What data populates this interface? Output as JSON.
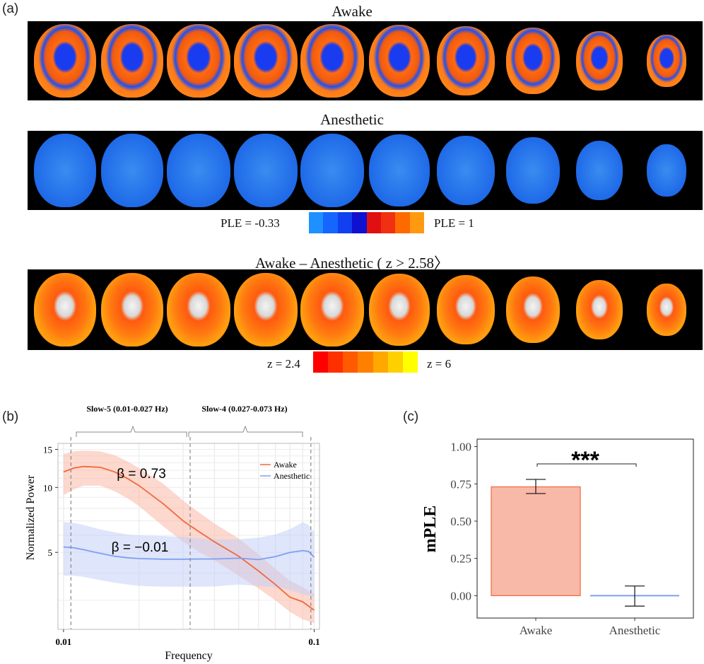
{
  "panel_a": {
    "label": "(a)",
    "rows": [
      {
        "title": "Awake",
        "scheme": "awake"
      },
      {
        "title": "Anesthetic",
        "scheme": "anesthetic"
      },
      {
        "title": "Awake – Anesthetic ( z > 2.58〉",
        "scheme": "diff"
      }
    ],
    "colorbar_ple": {
      "left_label": "PLE = -0.33",
      "right_label": "PLE = 1",
      "colors": [
        "#1e90ff",
        "#1565ff",
        "#1040f0",
        "#1010d0",
        "#e01010",
        "#f03010",
        "#ff6a00",
        "#ff9a10"
      ]
    },
    "colorbar_z": {
      "left_label": "z = 2.4",
      "right_label": "z = 6",
      "colors": [
        "#ff0000",
        "#ff3000",
        "#ff5a00",
        "#ff8000",
        "#ffa800",
        "#ffd000",
        "#ffff00"
      ]
    },
    "slice_count": 10
  },
  "panel_b": {
    "label": "(b)",
    "band_slow5": "Slow-5 (0.01-0.027 Hz)",
    "band_slow4": "Slow-4 (0.027-0.073 Hz)",
    "beta_awake": "β = 0.73",
    "beta_anesthetic": "β = −0.01"
  },
  "panel_c": {
    "label": "(c)",
    "significance": "***"
  },
  "colors": {
    "awake_line": "#f2693c",
    "awake_band": "#f9b8a6",
    "anesthetic_line": "#7f9ff2",
    "anesthetic_band": "#c5cff5",
    "bar_awake_fill": "#f9b9a8",
    "bar_awake_edge": "#f2693c",
    "bar_anesthetic_line": "#7f9ff2"
  },
  "chart_data": [
    {
      "type": "line",
      "xlabel": "Frequency",
      "ylabel": "Normalized Power",
      "x_scale": "log",
      "y_scale": "log",
      "xlim": [
        0.0095,
        0.105
      ],
      "ylim": [
        2.2,
        16
      ],
      "x_ticks": [
        "0.01",
        "0.1"
      ],
      "y_ticks": [
        "5",
        "10",
        "15"
      ],
      "legend": "top-right",
      "grid": true,
      "vlines": [
        0.0107,
        0.032,
        0.097
      ],
      "series": [
        {
          "name": "Awake",
          "x": [
            0.01,
            0.011,
            0.012,
            0.014,
            0.016,
            0.018,
            0.02,
            0.025,
            0.03,
            0.035,
            0.04,
            0.05,
            0.06,
            0.07,
            0.08,
            0.09,
            0.1
          ],
          "y": [
            11.8,
            12.3,
            12.5,
            12.4,
            11.8,
            11.0,
            10.2,
            8.4,
            7.0,
            6.2,
            5.6,
            4.8,
            4.1,
            3.55,
            3.1,
            2.95,
            2.7
          ],
          "lower": [
            9.2,
            9.8,
            10.2,
            10.2,
            9.6,
            8.9,
            8.2,
            6.6,
            5.6,
            5.0,
            4.6,
            3.9,
            3.4,
            3.0,
            2.65,
            2.45,
            2.35
          ],
          "upper": [
            14.3,
            14.7,
            14.8,
            14.7,
            14.1,
            13.2,
            12.3,
            10.4,
            8.7,
            7.6,
            6.8,
            5.8,
            4.9,
            4.2,
            3.7,
            3.45,
            3.2
          ]
        },
        {
          "name": "Anesthetic",
          "x": [
            0.01,
            0.011,
            0.012,
            0.014,
            0.016,
            0.018,
            0.02,
            0.025,
            0.03,
            0.035,
            0.04,
            0.05,
            0.06,
            0.07,
            0.08,
            0.09,
            0.095,
            0.1
          ],
          "y": [
            5.3,
            5.25,
            5.15,
            4.95,
            4.8,
            4.72,
            4.68,
            4.65,
            4.65,
            4.66,
            4.66,
            4.7,
            4.63,
            4.78,
            5.0,
            5.1,
            5.05,
            4.75
          ],
          "lower": [
            3.9,
            3.9,
            3.85,
            3.72,
            3.62,
            3.55,
            3.5,
            3.47,
            3.47,
            3.47,
            3.48,
            3.55,
            3.5,
            3.45,
            3.35,
            3.2,
            3.15,
            3.1
          ],
          "upper": [
            6.9,
            6.85,
            6.7,
            6.4,
            6.2,
            6.05,
            6.0,
            5.95,
            5.9,
            5.8,
            5.75,
            5.75,
            5.85,
            6.05,
            6.4,
            6.9,
            6.7,
            6.2
          ]
        }
      ]
    },
    {
      "type": "bar",
      "ylabel": "mPLE",
      "categories": [
        "Awake",
        "Anesthetic"
      ],
      "values": [
        0.73,
        0.0
      ],
      "error_low": [
        0.685,
        -0.07
      ],
      "error_high": [
        0.78,
        0.065
      ],
      "ylim": [
        -0.15,
        1.05
      ],
      "y_ticks": [
        "0.00",
        "0.25",
        "0.50",
        "0.75",
        "1.00"
      ],
      "grid": false
    }
  ]
}
